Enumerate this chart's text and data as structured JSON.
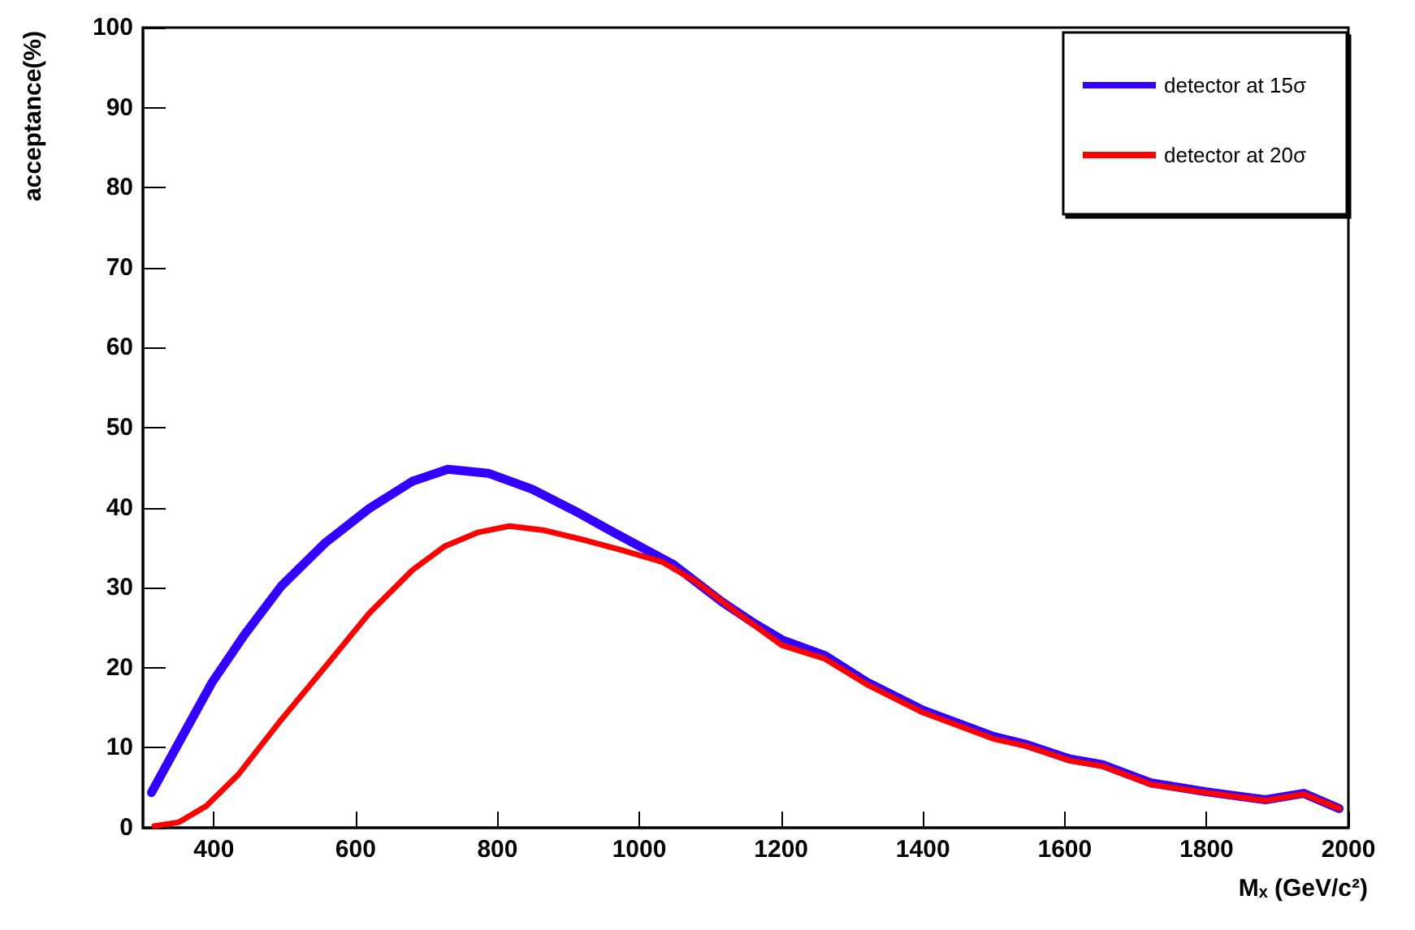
{
  "chart_data": {
    "type": "line",
    "xlabel": "Mₓ (GeV/c²)",
    "ylabel": "acceptance(%)",
    "xlim": [
      300,
      2000
    ],
    "xticks": [
      400,
      600,
      800,
      1000,
      1200,
      1400,
      1600,
      1800,
      2000
    ],
    "ylim": [
      0,
      100
    ],
    "yticks": [
      0,
      10,
      20,
      30,
      40,
      50,
      60,
      70,
      80,
      90,
      100
    ],
    "grid": false,
    "legend": "top right",
    "marker": "none",
    "line_style": "solid",
    "series": [
      {
        "name": "detector at 15σ",
        "color": "#3300ff",
        "x": [
          312,
          351,
          397,
          443,
          495,
          557,
          619,
          680,
          730,
          787,
          849,
          909,
          964,
          1048,
          1117,
          1163,
          1201,
          1262,
          1323,
          1400,
          1500,
          1546,
          1607,
          1653,
          1722,
          1799,
          1883,
          1937,
          1987
        ],
        "values": [
          4.4,
          10.7,
          18.1,
          24.1,
          30.2,
          35.6,
          39.9,
          43.3,
          44.8,
          44.3,
          42.3,
          39.6,
          36.9,
          32.9,
          28.2,
          25.5,
          23.5,
          21.5,
          18.1,
          14.7,
          11.4,
          10.4,
          8.6,
          7.9,
          5.6,
          4.5,
          3.5,
          4.3,
          2.4
        ]
      },
      {
        "name": "detector at 20σ",
        "color": "#ff0000",
        "x": [
          316,
          351,
          389,
          435,
          495,
          557,
          619,
          680,
          726,
          772,
          817,
          864,
          925,
          971,
          1033,
          1079,
          1139,
          1201,
          1262,
          1323,
          1400,
          1500,
          1546,
          1607,
          1653,
          1722,
          1799,
          1883,
          1937,
          1987
        ],
        "values": [
          0.2,
          0.7,
          2.7,
          6.7,
          13.5,
          20.1,
          26.8,
          32.2,
          35.2,
          36.9,
          37.7,
          37.2,
          35.9,
          34.8,
          33.2,
          30.8,
          26.8,
          22.8,
          21.1,
          17.8,
          14.4,
          11.1,
          10.2,
          8.4,
          7.7,
          5.4,
          4.4,
          3.4,
          4.2,
          2.4
        ]
      }
    ]
  }
}
